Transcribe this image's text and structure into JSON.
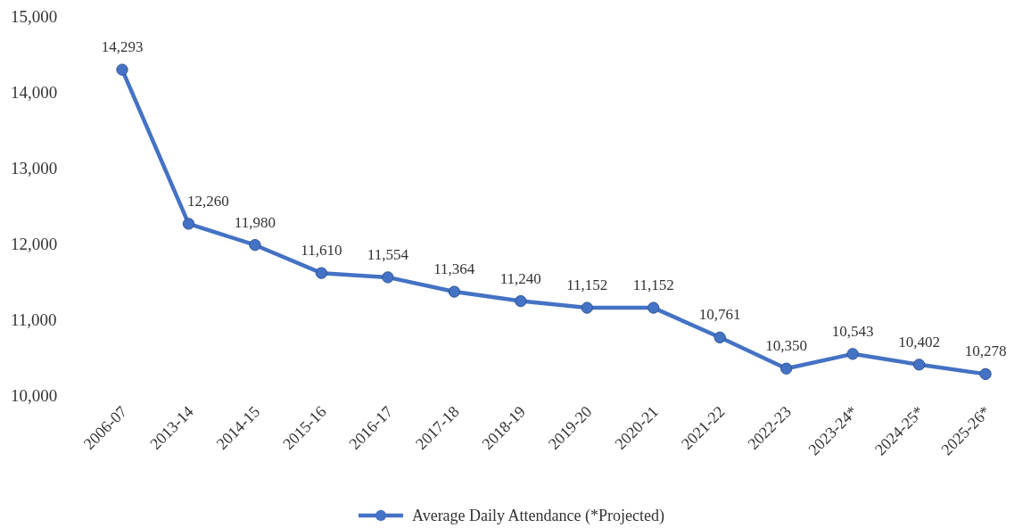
{
  "chart_data": {
    "type": "line",
    "categories": [
      "2006-07",
      "2013-14",
      "2014-15",
      "2015-16",
      "2016-17",
      "2017-18",
      "2018-19",
      "2019-20",
      "2020-21",
      "2021-22",
      "2022-23",
      "2023-24*",
      "2024-25*",
      "2025-26*"
    ],
    "series": [
      {
        "name": "Average Daily Attendance (*Projected)",
        "color": "#4472c4",
        "values": [
          14293,
          12260,
          11980,
          11610,
          11554,
          11364,
          11240,
          11152,
          11152,
          10761,
          10350,
          10543,
          10402,
          10278
        ],
        "value_labels": [
          "14,293",
          "12,260",
          "11,980",
          "11,610",
          "11,554",
          "11,364",
          "11,240",
          "11,152",
          "11,152",
          "10,761",
          "10,350",
          "10,543",
          "10,402",
          "10,278"
        ]
      }
    ],
    "ylim": [
      10000,
      15000
    ],
    "yticks": [
      {
        "value": 10000,
        "label": "10,000"
      },
      {
        "value": 11000,
        "label": "11,000"
      },
      {
        "value": 12000,
        "label": "12,000"
      },
      {
        "value": 13000,
        "label": "13,000"
      },
      {
        "value": 14000,
        "label": "14,000"
      },
      {
        "value": 15000,
        "label": "15,000"
      }
    ],
    "grid": false,
    "legend": "bottom",
    "marker": "circle",
    "line_style": "solid"
  }
}
